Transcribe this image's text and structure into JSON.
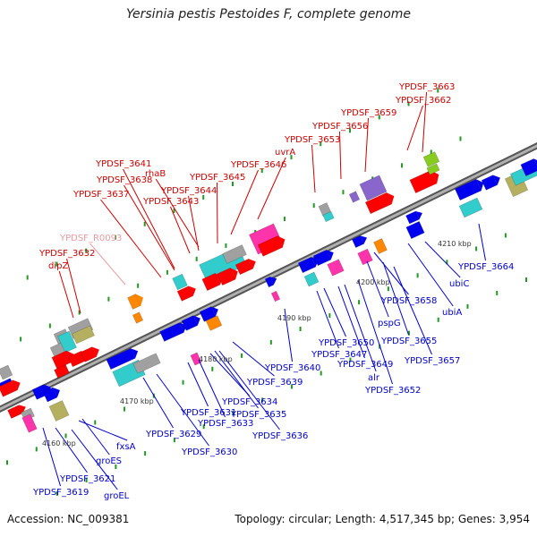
{
  "title": "Yersinia pestis Pestoides F, complete genome",
  "footer": {
    "accession": "Accession: NC_009381",
    "summary": "Topology: circular; Length: 4,517,345 bp; Genes: 3,954"
  },
  "colors": {
    "backbone": "#808080",
    "label_top": "#cc0000",
    "label_top_faded": "#e89aa0",
    "label_bottom": "#0000cc",
    "gene_red": "#ff0000",
    "gene_blue": "#0000ee",
    "gene_cyan": "#33cccc",
    "gene_magenta": "#ff33aa",
    "gene_purple": "#8866cc",
    "gene_green": "#88cc22",
    "gene_orange": "#ff8800",
    "gene_gray": "#a0a0a0",
    "gene_olive": "#b5b060",
    "tick_green": "#229922"
  },
  "scale_labels": [
    "4160 kbp",
    "4170 kbp",
    "4180 kbp",
    "4190 kbp",
    "4200 kbp",
    "4210 kbp"
  ],
  "top_labels": [
    "YPDSF_3663",
    "YPDSF_3662",
    "YPDSF_3659",
    "YPDSF_3656",
    "YPDSF_3653",
    "uvrA",
    "YPDSF_3646",
    "YPDSF_3645",
    "YPDSF_3644",
    "YPDSF_3643",
    "rhaB",
    "YPDSF_3641",
    "YPDSF_3638",
    "YPDSF_3637",
    "YPDSF_R0093",
    "YPDSF_3632",
    "dipZ"
  ],
  "bottom_labels": [
    "YPDSF_3664",
    "ubiC",
    "ubiA",
    "YPDSF_3658",
    "pspG",
    "YPDSF_3655",
    "YPDSF_3657",
    "YPDSF_3650",
    "YPDSF_3647",
    "YPDSF_3649",
    "alr",
    "YPDSF_3652",
    "YPDSF_3640",
    "YPDSF_3639",
    "YPDSF_3634",
    "YPDSF_3631",
    "YPDSF_3635",
    "YPDSF_3633",
    "YPDSF_3636",
    "YPDSF_3629",
    "YPDSF_3630",
    "fxsA",
    "groES",
    "YPDSF_3621",
    "groEL",
    "YPDSF_3619"
  ]
}
